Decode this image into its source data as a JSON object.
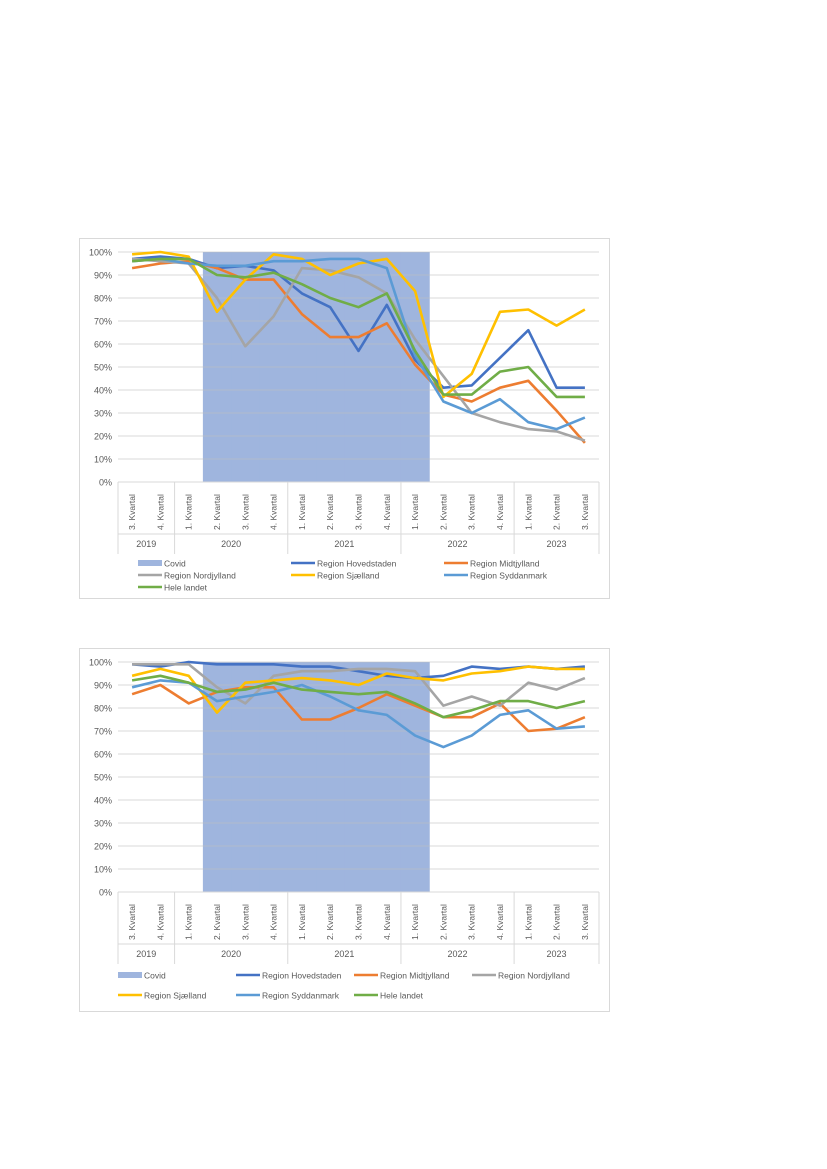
{
  "chart_data": [
    {
      "type": "line",
      "title": "",
      "xlabel": "",
      "ylabel": "",
      "ylim": [
        0,
        100
      ],
      "y_ticks": [
        "0%",
        "10%",
        "20%",
        "30%",
        "40%",
        "50%",
        "60%",
        "70%",
        "80%",
        "90%",
        "100%"
      ],
      "grid": true,
      "legend_position": "bottom",
      "categories": [
        "3. Kvartal",
        "4. Kvartal",
        "1. Kvartal",
        "2. Kvartal",
        "3. Kvartal",
        "4. Kvartal",
        "1. Kvartal",
        "2. Kvartal",
        "3. Kvartal",
        "4. Kvartal",
        "1. Kvartal",
        "2. Kvartal",
        "3. Kvartal",
        "4. Kvartal",
        "1. Kvartal",
        "2. Kvartal",
        "3. Kvartal"
      ],
      "year_groups": [
        {
          "label": "2019",
          "count": 2
        },
        {
          "label": "2020",
          "count": 4
        },
        {
          "label": "2021",
          "count": 4
        },
        {
          "label": "2022",
          "count": 4
        },
        {
          "label": "2023",
          "count": 3
        }
      ],
      "covid": {
        "name": "Covid",
        "type": "bar",
        "color": "#9fb5de",
        "values": [
          null,
          null,
          null,
          100,
          100,
          100,
          100,
          100,
          100,
          100,
          100,
          null,
          null,
          null,
          null,
          null,
          null
        ]
      },
      "series": [
        {
          "name": "Region Hovedstaden",
          "color": "#4472c4",
          "values": [
            97,
            98,
            97,
            93,
            94,
            92,
            82,
            76,
            57,
            77,
            53,
            41,
            42,
            54,
            66,
            41,
            41
          ]
        },
        {
          "name": "Region Midtjylland",
          "color": "#ed7d31",
          "values": [
            93,
            95,
            96,
            93,
            88,
            88,
            73,
            63,
            63,
            69,
            51,
            38,
            35,
            41,
            44,
            31,
            17
          ]
        },
        {
          "name": "Region Nordjylland",
          "color": "#a5a5a5",
          "values": [
            97,
            96,
            95,
            80,
            59,
            72,
            93,
            92,
            89,
            82,
            62,
            46,
            30,
            26,
            23,
            22,
            18
          ]
        },
        {
          "name": "Region Sjælland",
          "color": "#ffc000",
          "values": [
            99,
            100,
            98,
            74,
            88,
            99,
            97,
            90,
            95,
            97,
            83,
            37,
            47,
            74,
            75,
            68,
            75
          ]
        },
        {
          "name": "Region Syddanmark",
          "color": "#5b9bd5",
          "values": [
            96,
            97,
            95,
            94,
            94,
            96,
            96,
            97,
            97,
            93,
            55,
            35,
            30,
            36,
            26,
            23,
            28
          ]
        },
        {
          "name": "Hele landet",
          "color": "#70ad47",
          "values": [
            96,
            97,
            97,
            90,
            89,
            91,
            86,
            80,
            76,
            82,
            57,
            38,
            38,
            48,
            50,
            37,
            37
          ]
        }
      ]
    },
    {
      "type": "line",
      "title": "",
      "xlabel": "",
      "ylabel": "",
      "ylim": [
        0,
        100
      ],
      "y_ticks": [
        "0%",
        "10%",
        "20%",
        "30%",
        "40%",
        "50%",
        "60%",
        "70%",
        "80%",
        "90%",
        "100%"
      ],
      "grid": true,
      "legend_position": "bottom",
      "categories": [
        "3. Kvartal",
        "4. Kvartal",
        "1. Kvartal",
        "2. Kvartal",
        "3. Kvartal",
        "4. Kvartal",
        "1. Kvartal",
        "2. Kvartal",
        "3. Kvartal",
        "4. Kvartal",
        "1. Kvartal",
        "2. Kvartal",
        "3. Kvartal",
        "4. Kvartal",
        "1. Kvartal",
        "2. Kvartal",
        "3. Kvartal"
      ],
      "year_groups": [
        {
          "label": "2019",
          "count": 2
        },
        {
          "label": "2020",
          "count": 4
        },
        {
          "label": "2021",
          "count": 4
        },
        {
          "label": "2022",
          "count": 4
        },
        {
          "label": "2023",
          "count": 3
        }
      ],
      "covid": {
        "name": "Covid",
        "type": "bar",
        "color": "#9fb5de",
        "values": [
          null,
          null,
          null,
          100,
          100,
          100,
          100,
          100,
          100,
          100,
          100,
          null,
          null,
          null,
          null,
          null,
          null
        ]
      },
      "series": [
        {
          "name": "Region Hovedstaden",
          "color": "#4472c4",
          "values": [
            99,
            98,
            100,
            99,
            99,
            99,
            98,
            98,
            96,
            94,
            93,
            94,
            98,
            97,
            98,
            97,
            98
          ]
        },
        {
          "name": "Region Midtjylland",
          "color": "#ed7d31",
          "values": [
            86,
            90,
            82,
            87,
            89,
            89,
            75,
            75,
            80,
            86,
            81,
            76,
            76,
            82,
            70,
            71,
            76
          ]
        },
        {
          "name": "Region Nordjylland",
          "color": "#a5a5a5",
          "values": [
            99,
            99,
            99,
            89,
            82,
            94,
            96,
            96,
            97,
            97,
            96,
            81,
            85,
            81,
            91,
            88,
            93
          ]
        },
        {
          "name": "Region Sjælland",
          "color": "#ffc000",
          "values": [
            94,
            97,
            94,
            78,
            91,
            92,
            93,
            92,
            90,
            95,
            93,
            92,
            95,
            96,
            98,
            97,
            97
          ]
        },
        {
          "name": "Region Syddanmark",
          "color": "#5b9bd5",
          "values": [
            89,
            92,
            91,
            83,
            85,
            87,
            90,
            85,
            79,
            77,
            68,
            63,
            68,
            77,
            79,
            71,
            72
          ]
        },
        {
          "name": "Hele landet",
          "color": "#70ad47",
          "values": [
            92,
            94,
            91,
            87,
            88,
            91,
            88,
            87,
            86,
            87,
            82,
            76,
            79,
            83,
            83,
            80,
            83
          ]
        }
      ]
    }
  ],
  "legend_layouts": [
    [
      [
        "Covid",
        "Region Hovedstaden",
        "Region Midtjylland"
      ],
      [
        "Region Nordjylland",
        "Region Sjælland",
        "Region Syddanmark"
      ],
      [
        "Hele landet"
      ]
    ],
    [
      [
        "Covid",
        "Region Hovedstaden",
        "Region Midtjylland",
        "Region Nordjylland"
      ],
      [
        "Region Sjælland",
        "Region Syddanmark",
        "Hele landet"
      ]
    ]
  ]
}
